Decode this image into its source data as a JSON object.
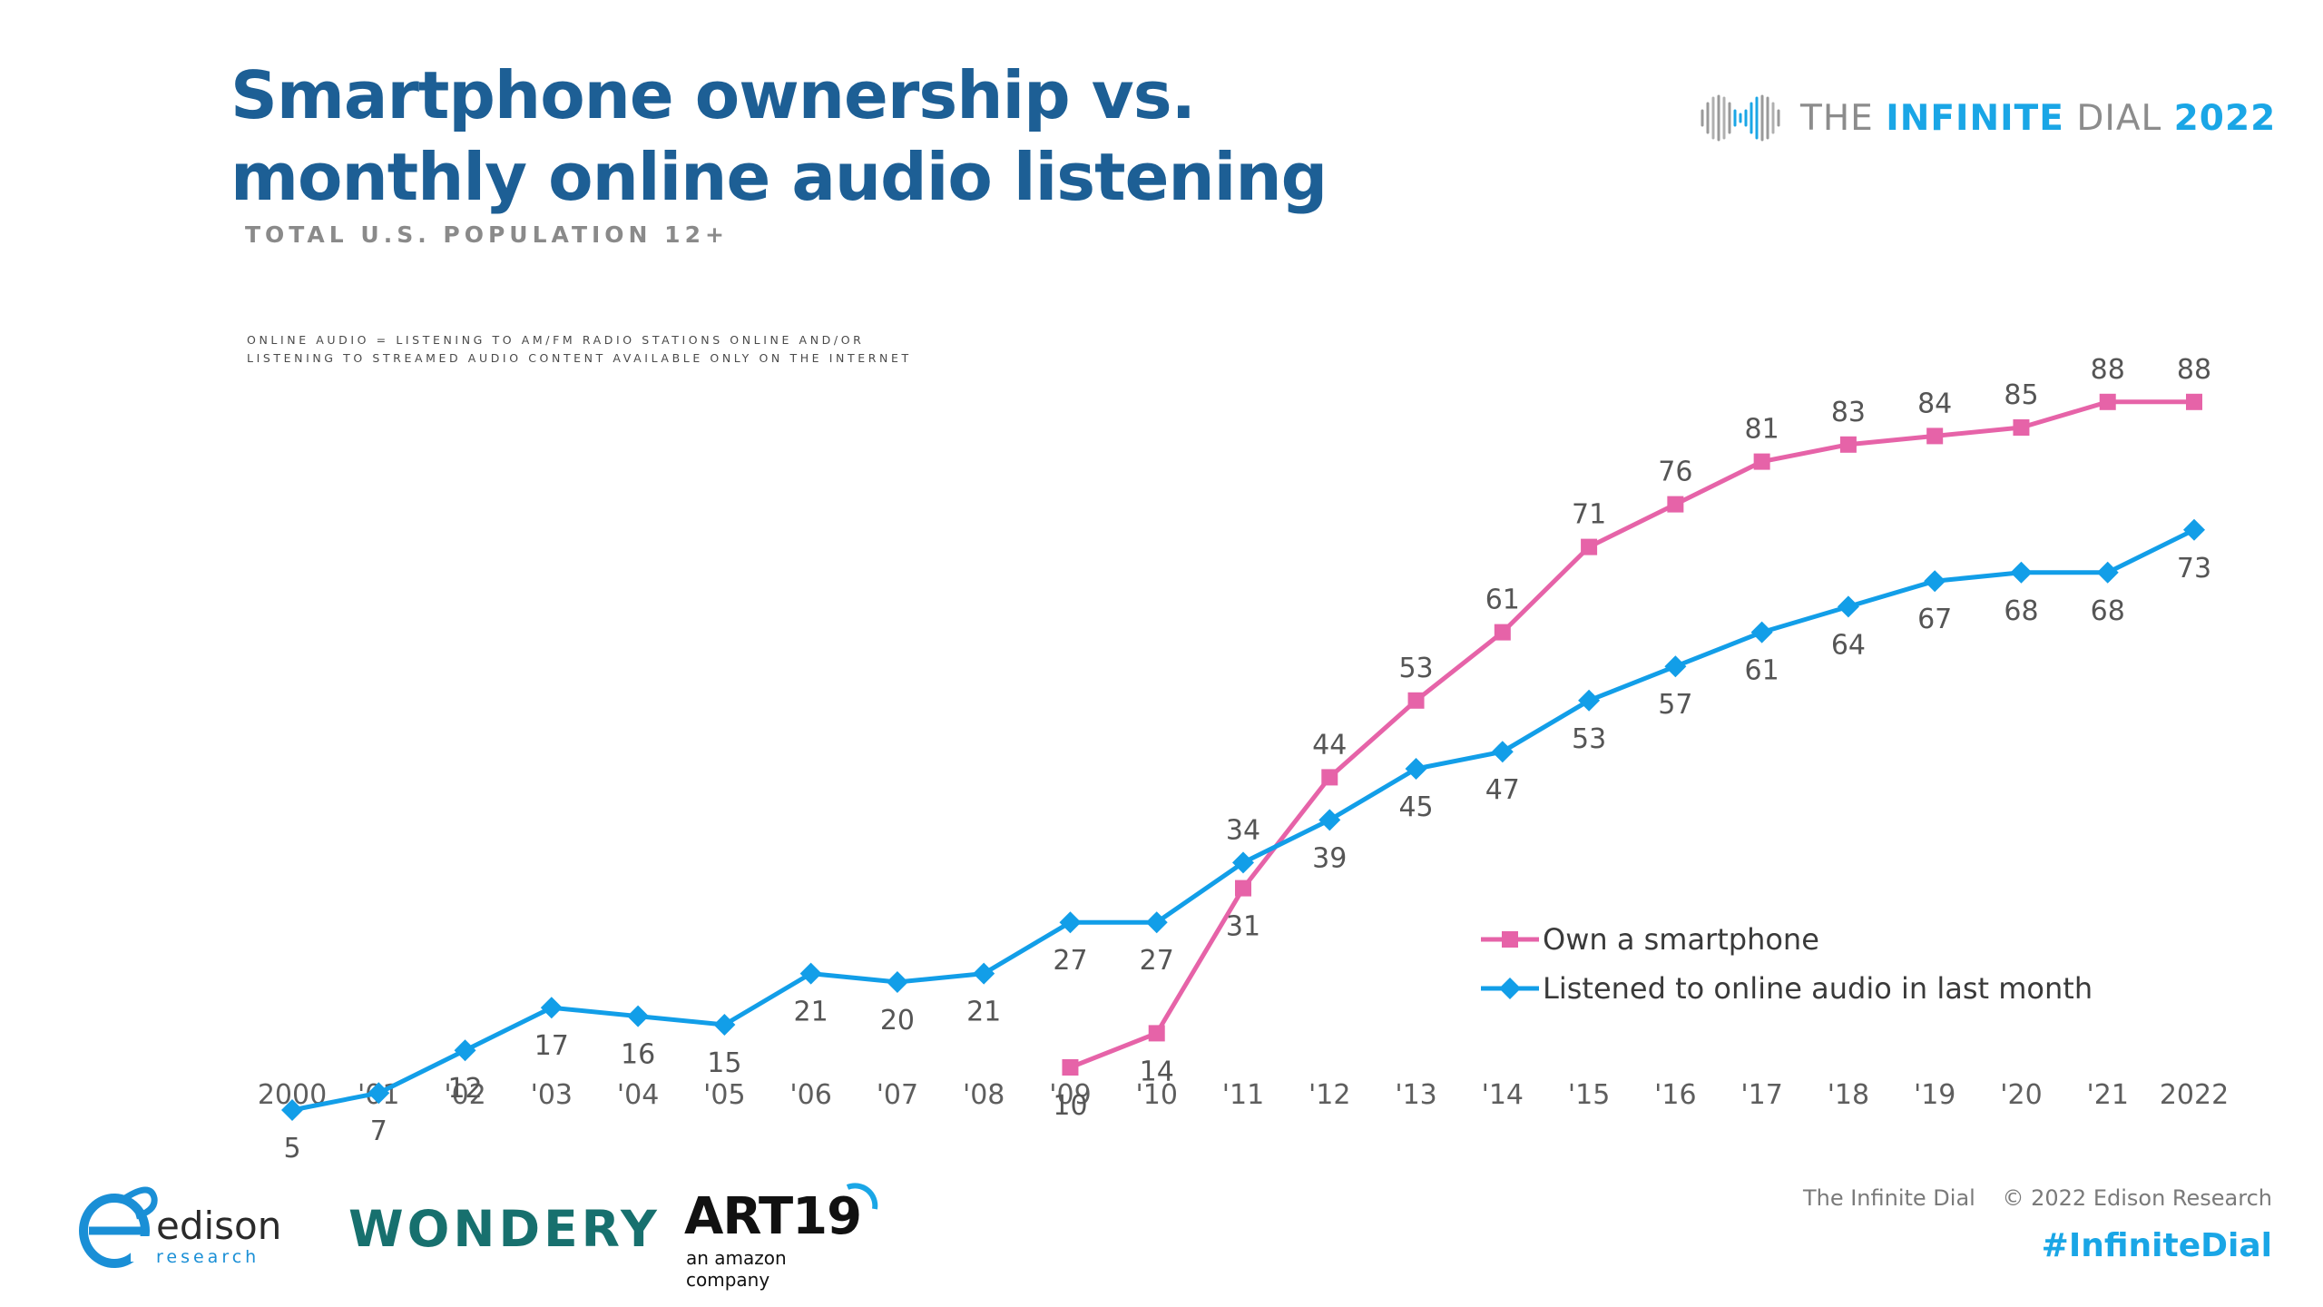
{
  "header": {
    "title_line1": "Smartphone ownership vs.",
    "title_line2": "monthly online audio listening",
    "subtitle": "TOTAL U.S. POPULATION 12+",
    "note_line1": "ONLINE AUDIO = LISTENING TO AM/FM RADIO STATIONS ONLINE AND/OR",
    "note_line2": "LISTENING TO STREAMED AUDIO CONTENT AVAILABLE ONLY ON THE INTERNET"
  },
  "brand": {
    "word1": "THE",
    "word2": "INFINITE",
    "word3": "DIAL",
    "word4": "2022"
  },
  "chart_data": {
    "type": "line",
    "title": "Smartphone ownership vs. monthly online audio listening",
    "subtitle": "TOTAL U.S. POPULATION 12+",
    "categories": [
      "2000",
      "'01",
      "'02",
      "'03",
      "'04",
      "'05",
      "'06",
      "'07",
      "'08",
      "'09",
      "'10",
      "'11",
      "'12",
      "'13",
      "'14",
      "'15",
      "'16",
      "'17",
      "'18",
      "'19",
      "'20",
      "'21",
      "2022"
    ],
    "series": [
      {
        "name": "Own a smartphone",
        "color": "#e663a8",
        "marker": "square",
        "values": [
          null,
          null,
          null,
          null,
          null,
          null,
          null,
          null,
          null,
          10,
          14,
          31,
          44,
          53,
          61,
          71,
          76,
          81,
          83,
          84,
          85,
          88,
          88
        ]
      },
      {
        "name": "Listened to online audio in last month",
        "color": "#129ee8",
        "marker": "diamond",
        "values": [
          5,
          7,
          12,
          17,
          16,
          15,
          21,
          20,
          21,
          27,
          27,
          34,
          39,
          45,
          47,
          53,
          57,
          61,
          64,
          67,
          68,
          68,
          73
        ]
      }
    ],
    "xlabel": "",
    "ylabel": "",
    "ylim": [
      0,
      100
    ],
    "grid": false,
    "legend": "lower-right"
  },
  "footer": {
    "edison_name": "edison",
    "edison_sub": "research",
    "wondery": "WONDERY",
    "art19": "ART19",
    "art19_sub": "an amazon company",
    "credit_left": "The Infinite Dial",
    "credit_right": "© 2022 Edison Research",
    "hashtag": "#InfiniteDial"
  }
}
